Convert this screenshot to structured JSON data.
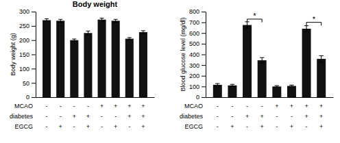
{
  "chart_data": [
    {
      "type": "bar",
      "title": "Body weight",
      "y_label": "Body weight (g)",
      "categories": [
        null,
        null,
        null,
        null,
        null,
        null,
        null,
        null
      ],
      "values": [
        270,
        268,
        200,
        225,
        272,
        268,
        205,
        228
      ],
      "errors": [
        5,
        5,
        4,
        7,
        5,
        5,
        4,
        5
      ],
      "color": "#111111",
      "ylim": [
        0,
        300
      ],
      "yticks": [
        0,
        50,
        100,
        150,
        200,
        250,
        300
      ],
      "table": {
        "rows": [
          "MCAO",
          "diabetes",
          "EGCG"
        ],
        "cells": [
          [
            "-",
            "-",
            "-",
            "-",
            "+",
            "+",
            "+",
            "+"
          ],
          [
            "-",
            "-",
            "+",
            "+",
            "-",
            "-",
            "+",
            "+"
          ],
          [
            "-",
            "+",
            "-",
            "+",
            "-",
            "+",
            "-",
            "+"
          ]
        ]
      }
    },
    {
      "type": "bar",
      "y_label": "Blood glucose level (mg/dl)",
      "categories": [
        null,
        null,
        null,
        null,
        null,
        null,
        null,
        null
      ],
      "values": [
        115,
        110,
        675,
        345,
        100,
        105,
        640,
        358
      ],
      "errors": [
        12,
        10,
        30,
        25,
        8,
        8,
        28,
        30
      ],
      "color": "#111111",
      "ylim": [
        0,
        800
      ],
      "yticks": [
        0,
        100,
        200,
        300,
        400,
        500,
        600,
        700,
        800
      ],
      "annotations": [
        {
          "text": "*",
          "from": 2,
          "to": 3,
          "y": 730,
          "drop": 30
        },
        {
          "text": "*",
          "from": 6,
          "to": 7,
          "y": 700,
          "drop": 30
        }
      ],
      "table": {
        "rows": [
          "MCAO",
          "diabetes",
          "EGCG"
        ],
        "cells": [
          [
            "-",
            "-",
            "-",
            "-",
            "+",
            "+",
            "+",
            "+"
          ],
          [
            "-",
            "-",
            "+",
            "+",
            "-",
            "-",
            "+",
            "+"
          ],
          [
            "-",
            "+",
            "-",
            "+",
            "-",
            "+",
            "-",
            "+"
          ]
        ]
      }
    }
  ]
}
